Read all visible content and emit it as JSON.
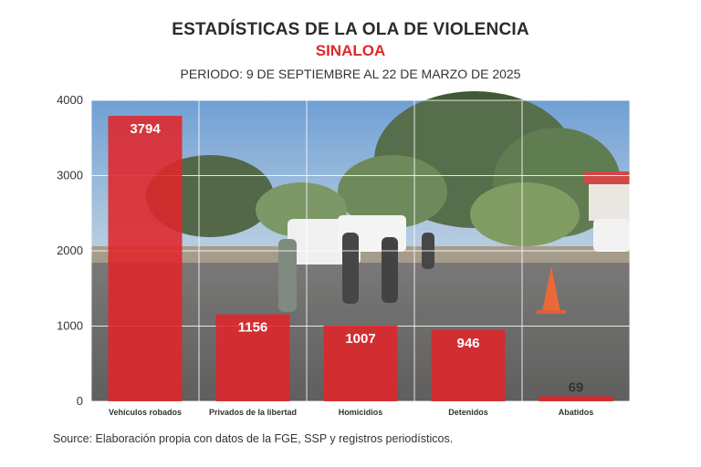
{
  "header": {
    "title": "ESTADÍSTICAS DE LA OLA DE VIOLENCIA",
    "subtitle": "SINALOA",
    "period": "PERIODO: 9 DE SEPTIEMBRE AL 22 DE MARZO DE 2025"
  },
  "footer": {
    "source": "Source: Elaboración propia con datos de la FGE, SSP y registros periodísticos."
  },
  "colors": {
    "bar": "#e0262a",
    "subtitle": "#e0262a"
  },
  "chart_data": {
    "type": "bar",
    "categories": [
      "Vehículos robados",
      "Privados de la libertad",
      "Homicidios",
      "Detenidos",
      "Abatidos"
    ],
    "values": [
      3794,
      1156,
      1007,
      946,
      69
    ],
    "ylim": [
      0,
      4000
    ],
    "yticks": [
      0,
      1000,
      2000,
      3000,
      4000
    ],
    "grid": true,
    "background": "photo of police roadblock scene"
  }
}
